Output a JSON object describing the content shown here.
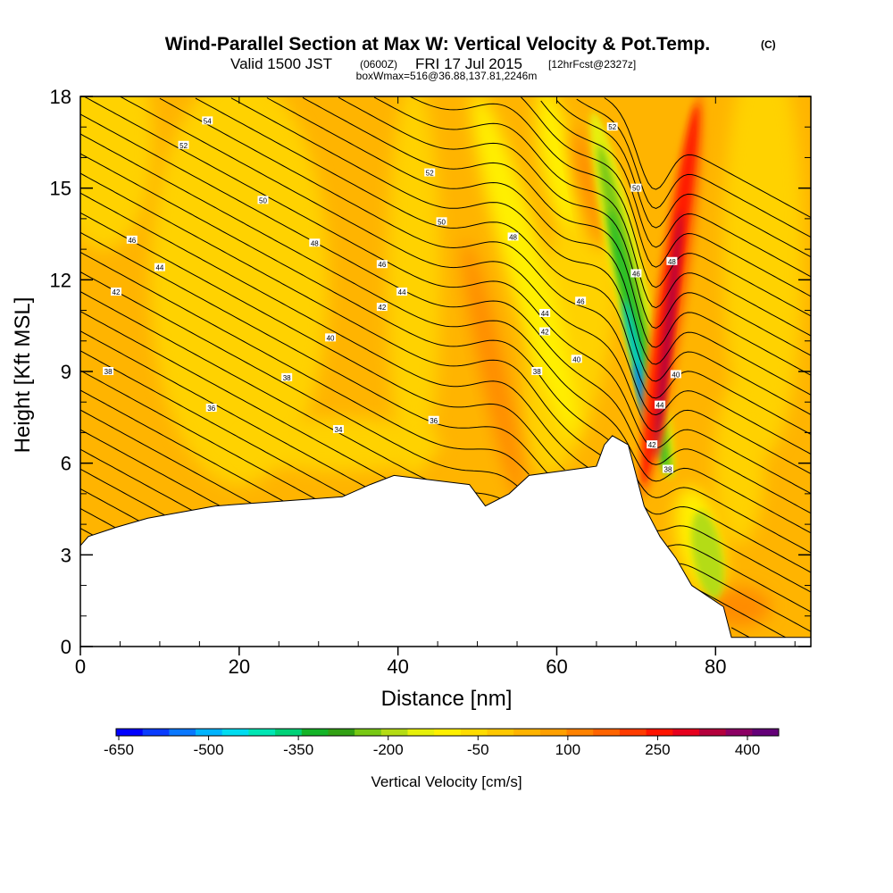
{
  "header": {
    "title": "Wind-Parallel Section at Max W: Vertical Velocity & Pot.Temp.",
    "copyright": "(C)",
    "valid_prefix": "Valid 1500 JST",
    "valid_z": "(0600Z)",
    "valid_date": "FRI 17 Jul 2015",
    "forecast": "[12hrFcst@2327z]",
    "box_info": "boxWmax=516@36.88,137.81,2246m"
  },
  "colors": {
    "orange": "#ffb400",
    "gold": "#ffd200",
    "yellow": "#fff000",
    "deep_orange": "#ff8c00",
    "red": "#ff1e00",
    "dark_red": "#b4003c",
    "green": "#28be28",
    "cyan": "#00c8c8",
    "blue": "#0064ff",
    "terrain": "#ffffff"
  },
  "chart_data": {
    "type": "heatmap",
    "xlabel": "Distance [nm]",
    "ylabel": "Height [Kft MSL]",
    "xlim": [
      0,
      92
    ],
    "ylim": [
      0,
      18
    ],
    "xticks": [
      "0",
      "20",
      "40",
      "60",
      "80"
    ],
    "yticks": [
      "0",
      "3",
      "6",
      "9",
      "12",
      "15",
      "18"
    ],
    "colorbar": {
      "label": "Vertical Velocity [cm/s]",
      "tick_labels": [
        "-650",
        "-500",
        "-350",
        "-200",
        "-50",
        "100",
        "250",
        "400"
      ],
      "colors": [
        "#0000ff",
        "#0a3cff",
        "#0a78ff",
        "#00b4ff",
        "#00dcf0",
        "#00e6b4",
        "#00d278",
        "#14b428",
        "#32a014",
        "#78c814",
        "#b4dc14",
        "#e6f00a",
        "#fff000",
        "#ffdc00",
        "#ffc800",
        "#ffb400",
        "#ffa000",
        "#ff8200",
        "#ff6400",
        "#ff3c00",
        "#ff1400",
        "#e6001e",
        "#b4003c",
        "#8c0064",
        "#640078"
      ]
    },
    "terrain_profile": [
      {
        "x": 0,
        "y": 3.3
      },
      {
        "x": 1,
        "y": 3.6
      },
      {
        "x": 4.5,
        "y": 3.9
      },
      {
        "x": 8.5,
        "y": 4.2
      },
      {
        "x": 17,
        "y": 4.6
      },
      {
        "x": 33,
        "y": 4.9
      },
      {
        "x": 36.5,
        "y": 5.3
      },
      {
        "x": 39.5,
        "y": 5.6
      },
      {
        "x": 49,
        "y": 5.3
      },
      {
        "x": 51,
        "y": 4.6
      },
      {
        "x": 54,
        "y": 5.0
      },
      {
        "x": 56.5,
        "y": 5.6
      },
      {
        "x": 65,
        "y": 5.9
      },
      {
        "x": 66,
        "y": 6.6
      },
      {
        "x": 67,
        "y": 6.9
      },
      {
        "x": 69,
        "y": 6.6
      },
      {
        "x": 71,
        "y": 4.6
      },
      {
        "x": 73,
        "y": 3.6
      },
      {
        "x": 75,
        "y": 2.9
      },
      {
        "x": 77,
        "y": 2.0
      },
      {
        "x": 81,
        "y": 1.3
      },
      {
        "x": 82,
        "y": 0.3
      },
      {
        "x": 92,
        "y": 0.3
      }
    ],
    "theta_contour_labels": [
      {
        "text": "54",
        "x": 16,
        "y": 17.2
      },
      {
        "text": "52",
        "x": 13,
        "y": 16.4
      },
      {
        "text": "50",
        "x": 23,
        "y": 14.6
      },
      {
        "text": "46",
        "x": 6.5,
        "y": 13.3
      },
      {
        "text": "44",
        "x": 10,
        "y": 12.4
      },
      {
        "text": "42",
        "x": 4.5,
        "y": 11.6
      },
      {
        "text": "48",
        "x": 29.5,
        "y": 13.2
      },
      {
        "text": "52",
        "x": 44,
        "y": 15.5
      },
      {
        "text": "50",
        "x": 45.5,
        "y": 13.9
      },
      {
        "text": "46",
        "x": 38,
        "y": 12.5
      },
      {
        "text": "44",
        "x": 40.5,
        "y": 11.6
      },
      {
        "text": "42",
        "x": 38,
        "y": 11.1
      },
      {
        "text": "40",
        "x": 31.5,
        "y": 10.1
      },
      {
        "text": "38",
        "x": 3.5,
        "y": 9.0
      },
      {
        "text": "38",
        "x": 26,
        "y": 8.8
      },
      {
        "text": "36",
        "x": 16.5,
        "y": 7.8
      },
      {
        "text": "36",
        "x": 44.5,
        "y": 7.4
      },
      {
        "text": "34",
        "x": 32.5,
        "y": 7.1
      },
      {
        "text": "48",
        "x": 54.5,
        "y": 13.4
      },
      {
        "text": "44",
        "x": 58.5,
        "y": 10.9
      },
      {
        "text": "46",
        "x": 63,
        "y": 11.3
      },
      {
        "text": "42",
        "x": 58.5,
        "y": 10.3
      },
      {
        "text": "40",
        "x": 62.5,
        "y": 9.4
      },
      {
        "text": "38",
        "x": 57.5,
        "y": 9.0
      },
      {
        "text": "52",
        "x": 67,
        "y": 17.0
      },
      {
        "text": "50",
        "x": 70,
        "y": 15.0
      },
      {
        "text": "46",
        "x": 70,
        "y": 12.2
      },
      {
        "text": "48",
        "x": 74.5,
        "y": 12.6
      },
      {
        "text": "40",
        "x": 75,
        "y": 8.9
      },
      {
        "text": "44",
        "x": 73,
        "y": 7.9
      },
      {
        "text": "42",
        "x": 72,
        "y": 6.6
      },
      {
        "text": "38",
        "x": 74,
        "y": 5.8
      }
    ]
  }
}
